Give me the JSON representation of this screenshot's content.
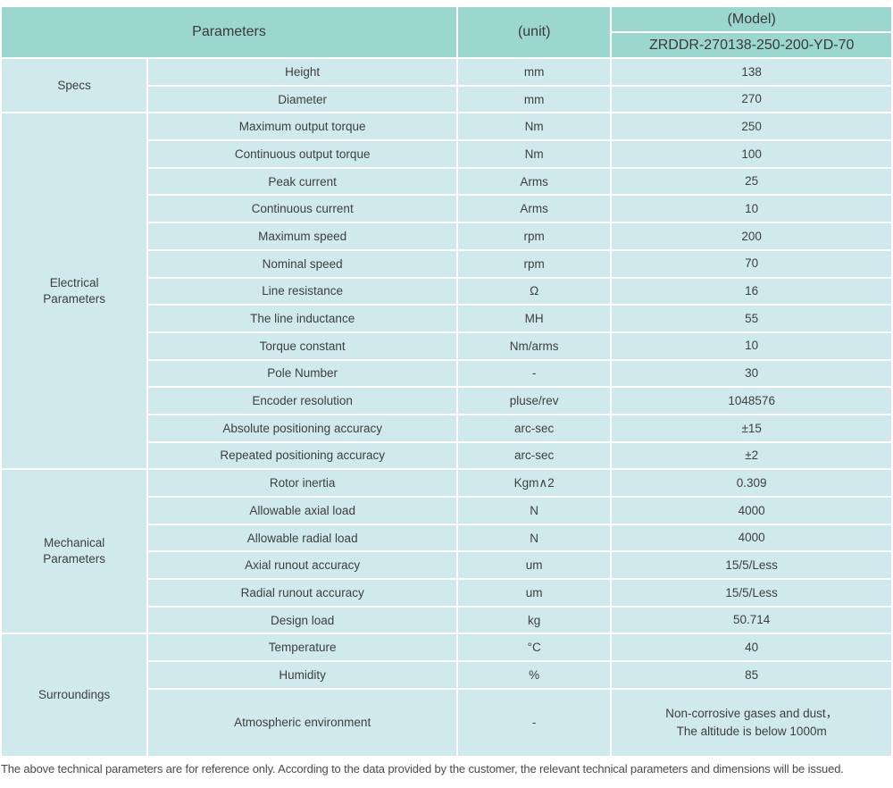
{
  "table": {
    "header": {
      "parameters_label": "Parameters",
      "unit_label": "(unit)",
      "model_label": "(Model)",
      "model_value": "ZRDDR-270138-250-200-YD-70"
    },
    "sections": [
      {
        "category": "Specs",
        "rows": [
          {
            "parameter": "Height",
            "unit": "mm",
            "value": "138"
          },
          {
            "parameter": "Diameter",
            "unit": "mm",
            "value": "270"
          }
        ]
      },
      {
        "category": "Electrical\nParameters",
        "rows": [
          {
            "parameter": "Maximum output torque",
            "unit": "Nm",
            "value": "250"
          },
          {
            "parameter": "Continuous output torque",
            "unit": "Nm",
            "value": "100"
          },
          {
            "parameter": "Peak current",
            "unit": "Arms",
            "value": "25"
          },
          {
            "parameter": "Continuous current",
            "unit": "Arms",
            "value": "10"
          },
          {
            "parameter": "Maximum speed",
            "unit": "rpm",
            "value": "200"
          },
          {
            "parameter": "Nominal speed",
            "unit": "rpm",
            "value": "70"
          },
          {
            "parameter": "Line resistance",
            "unit": "Ω",
            "value": "16"
          },
          {
            "parameter": "The line inductance",
            "unit": "MH",
            "value": "55"
          },
          {
            "parameter": "Torque constant",
            "unit": "Nm/arms",
            "value": "10"
          },
          {
            "parameter": "Pole Number",
            "unit": "-",
            "value": "30"
          },
          {
            "parameter": "Encoder resolution",
            "unit": "pluse/rev",
            "value": "1048576"
          },
          {
            "parameter": "Absolute positioning accuracy",
            "unit": "arc-sec",
            "value": "±15"
          },
          {
            "parameter": "Repeated positioning accuracy",
            "unit": "arc-sec",
            "value": "±2"
          }
        ]
      },
      {
        "category": "Mechanical\nParameters",
        "rows": [
          {
            "parameter": "Rotor inertia",
            "unit": "Kgm∧2",
            "value": "0.309"
          },
          {
            "parameter": "Allowable axial load",
            "unit": "N",
            "value": "4000"
          },
          {
            "parameter": "Allowable radial load",
            "unit": "N",
            "value": "4000"
          },
          {
            "parameter": "Axial runout accuracy",
            "unit": "um",
            "value": "15/5/Less"
          },
          {
            "parameter": "Radial runout accuracy",
            "unit": "um",
            "value": "15/5/Less"
          },
          {
            "parameter": "Design load",
            "unit": "kg",
            "value": "50.714"
          }
        ]
      },
      {
        "category": "Surroundings",
        "rows": [
          {
            "parameter": "Temperature",
            "unit": "°C",
            "value": "40"
          },
          {
            "parameter": "Humidity",
            "unit": "%",
            "value": "85"
          },
          {
            "parameter": "Atmospheric environment",
            "unit": "-",
            "value": "Non-corrosive gases and dust，\nThe altitude is below 1000m",
            "tall": true
          }
        ]
      }
    ]
  },
  "footnote": "The above technical parameters are for reference only. According to the data provided by the customer, the relevant technical parameters and dimensions will be issued.",
  "colors": {
    "header_bg": "#9bd6cf",
    "cell_bg": "#cfe9ed",
    "separator": "#ffffff",
    "text": "#3f3f3f"
  },
  "chart_data": {
    "type": "table",
    "title": "(Model) ZRDDR-270138-250-200-YD-70",
    "columns": [
      "Category",
      "Parameter",
      "Unit",
      "Value"
    ],
    "rows": [
      [
        "Specs",
        "Height",
        "mm",
        "138"
      ],
      [
        "Specs",
        "Diameter",
        "mm",
        "270"
      ],
      [
        "Electrical Parameters",
        "Maximum output torque",
        "Nm",
        "250"
      ],
      [
        "Electrical Parameters",
        "Continuous output torque",
        "Nm",
        "100"
      ],
      [
        "Electrical Parameters",
        "Peak current",
        "Arms",
        "25"
      ],
      [
        "Electrical Parameters",
        "Continuous current",
        "Arms",
        "10"
      ],
      [
        "Electrical Parameters",
        "Maximum speed",
        "rpm",
        "200"
      ],
      [
        "Electrical Parameters",
        "Nominal speed",
        "rpm",
        "70"
      ],
      [
        "Electrical Parameters",
        "Line resistance",
        "Ω",
        "16"
      ],
      [
        "Electrical Parameters",
        "The line inductance",
        "MH",
        "55"
      ],
      [
        "Electrical Parameters",
        "Torque constant",
        "Nm/arms",
        "10"
      ],
      [
        "Electrical Parameters",
        "Pole Number",
        "-",
        "30"
      ],
      [
        "Electrical Parameters",
        "Encoder resolution",
        "pluse/rev",
        "1048576"
      ],
      [
        "Electrical Parameters",
        "Absolute positioning accuracy",
        "arc-sec",
        "±15"
      ],
      [
        "Electrical Parameters",
        "Repeated positioning accuracy",
        "arc-sec",
        "±2"
      ],
      [
        "Mechanical Parameters",
        "Rotor inertia",
        "Kgm∧2",
        "0.309"
      ],
      [
        "Mechanical Parameters",
        "Allowable axial load",
        "N",
        "4000"
      ],
      [
        "Mechanical Parameters",
        "Allowable radial load",
        "N",
        "4000"
      ],
      [
        "Mechanical Parameters",
        "Axial runout accuracy",
        "um",
        "15/5/Less"
      ],
      [
        "Mechanical Parameters",
        "Radial runout accuracy",
        "um",
        "15/5/Less"
      ],
      [
        "Mechanical Parameters",
        "Design load",
        "kg",
        "50.714"
      ],
      [
        "Surroundings",
        "Temperature",
        "°C",
        "40"
      ],
      [
        "Surroundings",
        "Humidity",
        "%",
        "85"
      ],
      [
        "Surroundings",
        "Atmospheric environment",
        "-",
        "Non-corrosive gases and dust，The altitude is below 1000m"
      ]
    ]
  }
}
